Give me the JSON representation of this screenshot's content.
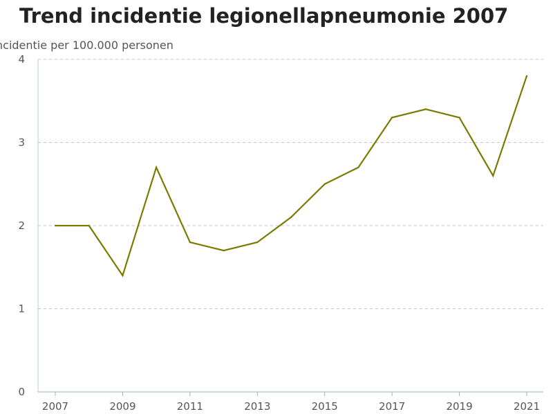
{
  "chart_data": {
    "type": "line",
    "title": "Trend incidentie legionellapneumonie 2007",
    "ylabel": "ncidentie per 100.000 personen",
    "xlabel": "",
    "ylim": [
      0,
      4
    ],
    "yticks": [
      0,
      1,
      2,
      3,
      4
    ],
    "xticks": [
      "2007",
      "2009",
      "2011",
      "2013",
      "2015",
      "2017",
      "2019",
      "2021"
    ],
    "grid": "horizontal dashed",
    "line_color": "#7a7a00",
    "series": [
      {
        "x": [
          2007,
          2008,
          2009,
          2010,
          2011,
          2012,
          2013,
          2014,
          2015,
          2016,
          2017,
          2018,
          2019,
          2020,
          2021
        ],
        "values": [
          2.0,
          2.0,
          1.4,
          2.7,
          1.8,
          1.7,
          1.8,
          2.1,
          2.5,
          2.7,
          3.3,
          3.4,
          3.3,
          2.6,
          3.8
        ]
      }
    ]
  }
}
